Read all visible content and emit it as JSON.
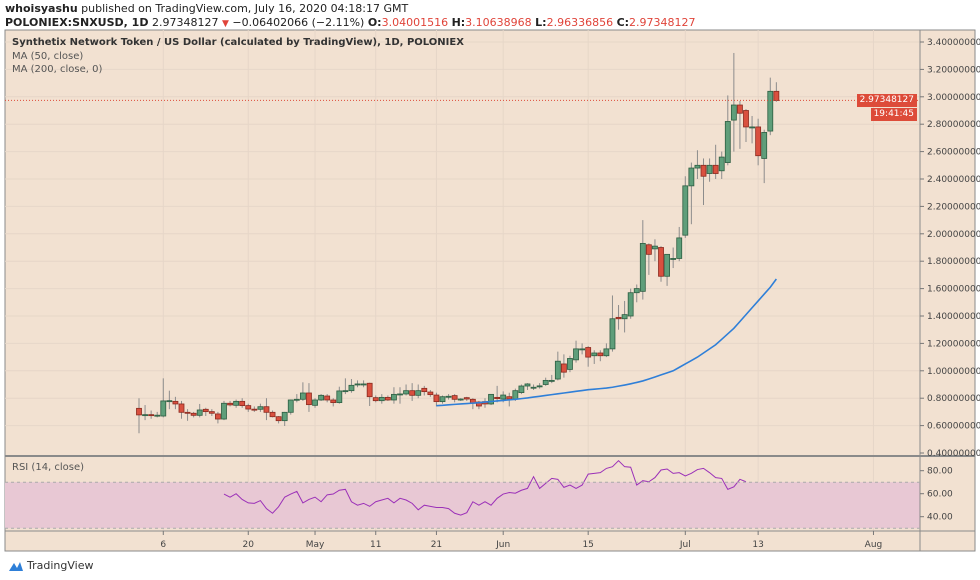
{
  "header": {
    "author": "whoisyashu",
    "published": "published on TradingView.com, July 16, 2020 04:18:17 GMT",
    "symbol": "POLONIEX:SNXUSD, 1D",
    "last": "2.97348127",
    "change": "−0.06402066 (−2.11%)",
    "direction_icon": "triangle-down-icon",
    "o_label": "O:",
    "o": "3.04001516",
    "h_label": "H:",
    "h": "3.10638968",
    "l_label": "L:",
    "l": "2.96336856",
    "c_label": "C:",
    "c": "2.97348127"
  },
  "legend": {
    "title": "Synthetix Network Token / US Dollar (calculated by TradingView), 1D, POLONIEX",
    "ma50": "MA (50, close)",
    "ma200": "MA (200, close, 0)",
    "rsi": "RSI (14, close)"
  },
  "price_tag": {
    "value": "2.97348127",
    "countdown": "19:41:45"
  },
  "footer": {
    "brand": "TradingView"
  },
  "colors": {
    "background": "#f2e1d1",
    "up": "#5f9e7a",
    "down": "#d9503f",
    "ma50": "#2f7fd8",
    "rsi": "#9b30b8",
    "rsi_band": "#e8c8d4"
  },
  "chart_data": {
    "type": "candlestick",
    "start_date": "2020-04-02",
    "interval": "1D",
    "ylim": [
      0.4,
      3.4
    ],
    "y_ticks": [
      "3.40000000",
      "3.20000000",
      "3.00000000",
      "2.80000000",
      "2.60000000",
      "2.40000000",
      "2.20000000",
      "2.00000000",
      "1.80000000",
      "1.60000000",
      "1.40000000",
      "1.20000000",
      "1.00000000",
      "0.80000000",
      "0.60000000",
      "0.40000000"
    ],
    "x_ticks": [
      {
        "label": "6",
        "date": "2020-04-06"
      },
      {
        "label": "20",
        "date": "2020-04-20"
      },
      {
        "label": "May",
        "date": "2020-05-01"
      },
      {
        "label": "11",
        "date": "2020-05-11"
      },
      {
        "label": "21",
        "date": "2020-05-21"
      },
      {
        "label": "Jun",
        "date": "2020-06-01"
      },
      {
        "label": "15",
        "date": "2020-06-15"
      },
      {
        "label": "Jul",
        "date": "2020-07-01"
      },
      {
        "label": "13",
        "date": "2020-07-13"
      },
      {
        "label": "Aug",
        "date": "2020-08-01"
      }
    ],
    "ohlc": [
      [
        0.726,
        0.8,
        0.544,
        0.678
      ],
      [
        0.678,
        0.75,
        0.64,
        0.68
      ],
      [
        0.68,
        0.71,
        0.65,
        0.676
      ],
      [
        0.676,
        0.7,
        0.66,
        0.676
      ],
      [
        0.67,
        0.945,
        0.66,
        0.78
      ],
      [
        0.78,
        0.855,
        0.72,
        0.782
      ],
      [
        0.777,
        0.81,
        0.72,
        0.758
      ],
      [
        0.758,
        0.78,
        0.65,
        0.697
      ],
      [
        0.697,
        0.72,
        0.635,
        0.69
      ],
      [
        0.69,
        0.7,
        0.66,
        0.675
      ],
      [
        0.675,
        0.758,
        0.66,
        0.714
      ],
      [
        0.719,
        0.73,
        0.67,
        0.702
      ],
      [
        0.702,
        0.72,
        0.67,
        0.69
      ],
      [
        0.685,
        0.7,
        0.616,
        0.648
      ],
      [
        0.648,
        0.78,
        0.64,
        0.763
      ],
      [
        0.763,
        0.78,
        0.74,
        0.751
      ],
      [
        0.748,
        0.79,
        0.73,
        0.777
      ],
      [
        0.777,
        0.8,
        0.73,
        0.746
      ],
      [
        0.746,
        0.76,
        0.7,
        0.721
      ],
      [
        0.72,
        0.74,
        0.7,
        0.719
      ],
      [
        0.719,
        0.76,
        0.7,
        0.738
      ],
      [
        0.738,
        0.8,
        0.64,
        0.697
      ],
      [
        0.697,
        0.71,
        0.66,
        0.665
      ],
      [
        0.665,
        0.67,
        0.616,
        0.636
      ],
      [
        0.636,
        0.7,
        0.597,
        0.697
      ],
      [
        0.697,
        0.79,
        0.68,
        0.787
      ],
      [
        0.79,
        0.83,
        0.77,
        0.792
      ],
      [
        0.792,
        0.916,
        0.78,
        0.838
      ],
      [
        0.838,
        0.91,
        0.7,
        0.753
      ],
      [
        0.748,
        0.8,
        0.73,
        0.787
      ],
      [
        0.787,
        0.83,
        0.78,
        0.821
      ],
      [
        0.816,
        0.83,
        0.77,
        0.787
      ],
      [
        0.787,
        0.8,
        0.74,
        0.768
      ],
      [
        0.768,
        0.884,
        0.76,
        0.853
      ],
      [
        0.853,
        0.945,
        0.83,
        0.855
      ],
      [
        0.855,
        0.94,
        0.84,
        0.894
      ],
      [
        0.9,
        0.93,
        0.88,
        0.904
      ],
      [
        0.9,
        0.93,
        0.88,
        0.904
      ],
      [
        0.909,
        0.913,
        0.743,
        0.811
      ],
      [
        0.804,
        0.82,
        0.77,
        0.782
      ],
      [
        0.782,
        0.83,
        0.76,
        0.806
      ],
      [
        0.806,
        0.82,
        0.78,
        0.787
      ],
      [
        0.787,
        0.88,
        0.76,
        0.828
      ],
      [
        0.83,
        0.88,
        0.76,
        0.831
      ],
      [
        0.831,
        0.9,
        0.82,
        0.855
      ],
      [
        0.855,
        0.91,
        0.78,
        0.821
      ],
      [
        0.821,
        0.9,
        0.8,
        0.855
      ],
      [
        0.872,
        0.89,
        0.82,
        0.848
      ],
      [
        0.845,
        0.86,
        0.81,
        0.826
      ],
      [
        0.823,
        0.84,
        0.74,
        0.775
      ],
      [
        0.775,
        0.82,
        0.76,
        0.811
      ],
      [
        0.81,
        0.83,
        0.79,
        0.814
      ],
      [
        0.819,
        0.83,
        0.77,
        0.792
      ],
      [
        0.79,
        0.8,
        0.78,
        0.794
      ],
      [
        0.804,
        0.81,
        0.78,
        0.794
      ],
      [
        0.792,
        0.8,
        0.72,
        0.763
      ],
      [
        0.772,
        0.78,
        0.72,
        0.743
      ],
      [
        0.775,
        0.8,
        0.73,
        0.758
      ],
      [
        0.758,
        0.83,
        0.75,
        0.828
      ],
      [
        0.806,
        0.89,
        0.77,
        0.797
      ],
      [
        0.794,
        0.85,
        0.77,
        0.823
      ],
      [
        0.811,
        0.84,
        0.74,
        0.794
      ],
      [
        0.794,
        0.87,
        0.78,
        0.855
      ],
      [
        0.841,
        0.9,
        0.83,
        0.889
      ],
      [
        0.889,
        0.91,
        0.86,
        0.904
      ],
      [
        0.88,
        0.9,
        0.86,
        0.88
      ],
      [
        0.885,
        0.91,
        0.87,
        0.89
      ],
      [
        0.9,
        0.95,
        0.89,
        0.93
      ],
      [
        0.93,
        0.97,
        0.91,
        0.93
      ],
      [
        0.94,
        1.14,
        0.93,
        1.07
      ],
      [
        1.05,
        1.12,
        0.95,
        0.99
      ],
      [
        1.01,
        1.11,
        0.99,
        1.09
      ],
      [
        1.08,
        1.22,
        1.06,
        1.16
      ],
      [
        1.16,
        1.2,
        1.12,
        1.16
      ],
      [
        1.17,
        1.18,
        1.03,
        1.1
      ],
      [
        1.11,
        1.15,
        1.05,
        1.13
      ],
      [
        1.13,
        1.15,
        1.07,
        1.11
      ],
      [
        1.11,
        1.2,
        1.1,
        1.16
      ],
      [
        1.16,
        1.55,
        1.14,
        1.38
      ],
      [
        1.39,
        1.48,
        1.3,
        1.38
      ],
      [
        1.38,
        1.51,
        1.28,
        1.41
      ],
      [
        1.4,
        1.6,
        1.38,
        1.57
      ],
      [
        1.57,
        1.63,
        1.5,
        1.6
      ],
      [
        1.58,
        2.1,
        1.52,
        1.93
      ],
      [
        1.92,
        1.93,
        1.7,
        1.85
      ],
      [
        1.89,
        1.96,
        1.8,
        1.91
      ],
      [
        1.9,
        1.91,
        1.65,
        1.69
      ],
      [
        1.69,
        1.85,
        1.62,
        1.85
      ],
      [
        1.82,
        1.9,
        1.75,
        1.82
      ],
      [
        1.82,
        2.05,
        1.8,
        1.97
      ],
      [
        1.99,
        2.42,
        1.97,
        2.35
      ],
      [
        2.35,
        2.52,
        2.07,
        2.48
      ],
      [
        2.48,
        2.61,
        2.4,
        2.5
      ],
      [
        2.5,
        2.55,
        2.21,
        2.42
      ],
      [
        2.44,
        2.55,
        2.38,
        2.5
      ],
      [
        2.5,
        2.65,
        2.4,
        2.44
      ],
      [
        2.46,
        2.6,
        2.4,
        2.56
      ],
      [
        2.52,
        3.01,
        2.5,
        2.82
      ],
      [
        2.83,
        3.32,
        2.6,
        2.94
      ],
      [
        2.94,
        2.97,
        2.62,
        2.88
      ],
      [
        2.9,
        2.91,
        2.67,
        2.78
      ],
      [
        2.78,
        2.86,
        2.66,
        2.78
      ],
      [
        2.78,
        2.84,
        2.5,
        2.57
      ],
      [
        2.55,
        2.76,
        2.37,
        2.74
      ],
      [
        2.75,
        3.14,
        2.72,
        3.04
      ],
      [
        3.04001516,
        3.10638968,
        2.96336856,
        2.97348127
      ]
    ],
    "ma50_start_date": "2020-05-21",
    "ma50": [
      0.745,
      0.748,
      0.752,
      0.755,
      0.758,
      0.761,
      0.764,
      0.767,
      0.772,
      0.776,
      0.78,
      0.784,
      0.788,
      0.792,
      0.797,
      0.802,
      0.808,
      0.814,
      0.82,
      0.826,
      0.832,
      0.838,
      0.844,
      0.85,
      0.856,
      0.862,
      0.866,
      0.87,
      0.874,
      0.88,
      0.888,
      0.896,
      0.905,
      0.915,
      0.926,
      0.94,
      0.955,
      0.97,
      0.985,
      1.0,
      1.025,
      1.05,
      1.075,
      1.1,
      1.13,
      1.16,
      1.19,
      1.23,
      1.27,
      1.31,
      1.36,
      1.41,
      1.46,
      1.51,
      1.56,
      1.61,
      1.67
    ],
    "rsi": {
      "start_date": "2020-04-16",
      "ylim": [
        25,
        92
      ],
      "y_ticks": [
        "80.00",
        "60.00",
        "40.00"
      ],
      "bands": [
        70,
        30
      ],
      "values": [
        59.7,
        57,
        60,
        55,
        52,
        51.6,
        54,
        47,
        43,
        48.7,
        57,
        59.7,
        62,
        52,
        55,
        57,
        53,
        59,
        59.7,
        63,
        63.8,
        53,
        50,
        51.6,
        49,
        53,
        54.5,
        56,
        52,
        56,
        54.5,
        51.6,
        46,
        50,
        49,
        48,
        48,
        47,
        43,
        41.4,
        43.5,
        53,
        50,
        53,
        50,
        56,
        59.7,
        61,
        60.4,
        63,
        64.6,
        74.8,
        64.6,
        69,
        73.3,
        72.5,
        65.5,
        67.5,
        64.6,
        67.5,
        77,
        77.7,
        78.3,
        82,
        83.5,
        88.7,
        83.5,
        83,
        67.5,
        71.3,
        70.4,
        74,
        80.6,
        81.5,
        77.7,
        78.3,
        75.4,
        77.7,
        81,
        82,
        78.3,
        74,
        73.3,
        63.8,
        66,
        72.5,
        70.4
      ]
    }
  }
}
